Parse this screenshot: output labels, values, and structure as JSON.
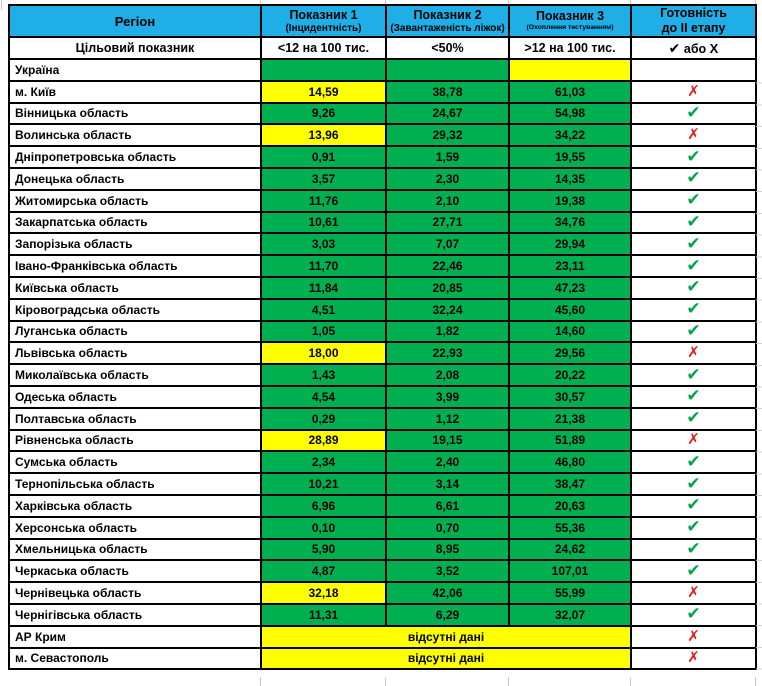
{
  "colors": {
    "blue": "#1FAEE5",
    "green": "#00B050",
    "yellow": "#FFFF00",
    "gray": "#BFBFBF",
    "check": "#00A64F",
    "cross": "#EE1515"
  },
  "icons": {
    "check": "✔",
    "cross": "✗",
    "cross_target": "Х"
  },
  "header": {
    "region_label": "Регіон",
    "col1_title": "Показник 1",
    "col1_sub": "(Інцидентність)",
    "col2_title": "Показник 2",
    "col2_sub": "(Завантаженість ліжок)",
    "col3_title": "Показник 3",
    "col3_sub": "(Охоплення тестуванням)",
    "readiness_line1": "Готовність",
    "readiness_line2": "до ІІ етапу"
  },
  "target_row": {
    "label": "Цільовий показник",
    "col1": "<12 на 100 тис.",
    "col2": "<50%",
    "col3": ">12 на 100 тис.",
    "or_text": "або"
  },
  "rows": [
    {
      "region": "Україна",
      "v1": "",
      "c1": "g",
      "v2": "",
      "c2": "g",
      "v3": "",
      "c3": "y",
      "ready": "none",
      "ready_bg": "gray"
    },
    {
      "region": "м. Київ",
      "v1": "14,59",
      "c1": "y",
      "v2": "38,78",
      "c2": "g",
      "v3": "61,03",
      "c3": "g",
      "ready": "cross"
    },
    {
      "region": "Вінницька область",
      "v1": "9,26",
      "c1": "g",
      "v2": "24,67",
      "c2": "g",
      "v3": "54,98",
      "c3": "g",
      "ready": "check"
    },
    {
      "region": "Волинська область",
      "v1": "13,96",
      "c1": "y",
      "v2": "29,32",
      "c2": "g",
      "v3": "34,22",
      "c3": "g",
      "ready": "cross"
    },
    {
      "region": "Дніпропетровська область",
      "v1": "0,91",
      "c1": "g",
      "v2": "1,59",
      "c2": "g",
      "v3": "19,55",
      "c3": "g",
      "ready": "check"
    },
    {
      "region": "Донецька область",
      "v1": "3,57",
      "c1": "g",
      "v2": "2,30",
      "c2": "g",
      "v3": "14,35",
      "c3": "g",
      "ready": "check"
    },
    {
      "region": "Житомирська область",
      "v1": "11,76",
      "c1": "g",
      "v2": "2,10",
      "c2": "g",
      "v3": "19,38",
      "c3": "g",
      "ready": "check"
    },
    {
      "region": "Закарпатська область",
      "v1": "10,61",
      "c1": "g",
      "v2": "27,71",
      "c2": "g",
      "v3": "34,76",
      "c3": "g",
      "ready": "check"
    },
    {
      "region": "Запорізька область",
      "v1": "3,03",
      "c1": "g",
      "v2": "7,07",
      "c2": "g",
      "v3": "29,94",
      "c3": "g",
      "ready": "check"
    },
    {
      "region": "Івано-Франківська область",
      "v1": "11,70",
      "c1": "g",
      "v2": "22,46",
      "c2": "g",
      "v3": "23,11",
      "c3": "g",
      "ready": "check"
    },
    {
      "region": "Київська область",
      "v1": "11,84",
      "c1": "g",
      "v2": "20,85",
      "c2": "g",
      "v3": "47,23",
      "c3": "g",
      "ready": "check"
    },
    {
      "region": "Кіровоградська область",
      "v1": "4,51",
      "c1": "g",
      "v2": "32,24",
      "c2": "g",
      "v3": "45,60",
      "c3": "g",
      "ready": "check"
    },
    {
      "region": "Луганська область",
      "v1": "1,05",
      "c1": "g",
      "v2": "1,82",
      "c2": "g",
      "v3": "14,60",
      "c3": "g",
      "ready": "check"
    },
    {
      "region": "Львівська область",
      "v1": "18,00",
      "c1": "y",
      "v2": "22,93",
      "c2": "g",
      "v3": "29,56",
      "c3": "g",
      "ready": "cross"
    },
    {
      "region": "Миколаївська область",
      "v1": "1,43",
      "c1": "g",
      "v2": "2,08",
      "c2": "g",
      "v3": "20,22",
      "c3": "g",
      "ready": "check"
    },
    {
      "region": "Одеська область",
      "v1": "4,54",
      "c1": "g",
      "v2": "3,99",
      "c2": "g",
      "v3": "30,57",
      "c3": "g",
      "ready": "check"
    },
    {
      "region": "Полтавська область",
      "v1": "0,29",
      "c1": "g",
      "v2": "1,12",
      "c2": "g",
      "v3": "21,38",
      "c3": "g",
      "ready": "check"
    },
    {
      "region": "Рівненська область",
      "v1": "28,89",
      "c1": "y",
      "v2": "19,15",
      "c2": "g",
      "v3": "51,89",
      "c3": "g",
      "ready": "cross"
    },
    {
      "region": "Сумська область",
      "v1": "2,34",
      "c1": "g",
      "v2": "2,40",
      "c2": "g",
      "v3": "46,80",
      "c3": "g",
      "ready": "check"
    },
    {
      "region": "Тернопільська область",
      "v1": "10,21",
      "c1": "g",
      "v2": "3,14",
      "c2": "g",
      "v3": "38,47",
      "c3": "g",
      "ready": "check"
    },
    {
      "region": "Харківська область",
      "v1": "6,96",
      "c1": "g",
      "v2": "6,61",
      "c2": "g",
      "v3": "20,63",
      "c3": "g",
      "ready": "check"
    },
    {
      "region": "Херсонська область",
      "v1": "0,10",
      "c1": "g",
      "v2": "0,70",
      "c2": "g",
      "v3": "55,36",
      "c3": "g",
      "ready": "check"
    },
    {
      "region": "Хмельницька область",
      "v1": "5,90",
      "c1": "g",
      "v2": "8,95",
      "c2": "g",
      "v3": "24,62",
      "c3": "g",
      "ready": "check"
    },
    {
      "region": "Черкаська область",
      "v1": "4,87",
      "c1": "g",
      "v2": "3,52",
      "c2": "g",
      "v3": "107,01",
      "c3": "g",
      "ready": "check"
    },
    {
      "region": "Чернівецька область",
      "v1": "32,18",
      "c1": "y",
      "v2": "42,06",
      "c2": "g",
      "v3": "55,99",
      "c3": "g",
      "ready": "cross"
    },
    {
      "region": "Чернігівська область",
      "v1": "11,31",
      "c1": "g",
      "v2": "6,29",
      "c2": "g",
      "v3": "32,07",
      "c3": "g",
      "ready": "check"
    },
    {
      "region": "АР Крим",
      "merged": "відсутні дані",
      "ready": "cross"
    },
    {
      "region": "м. Севастополь",
      "merged": "відсутні дані",
      "ready": "cross"
    }
  ]
}
